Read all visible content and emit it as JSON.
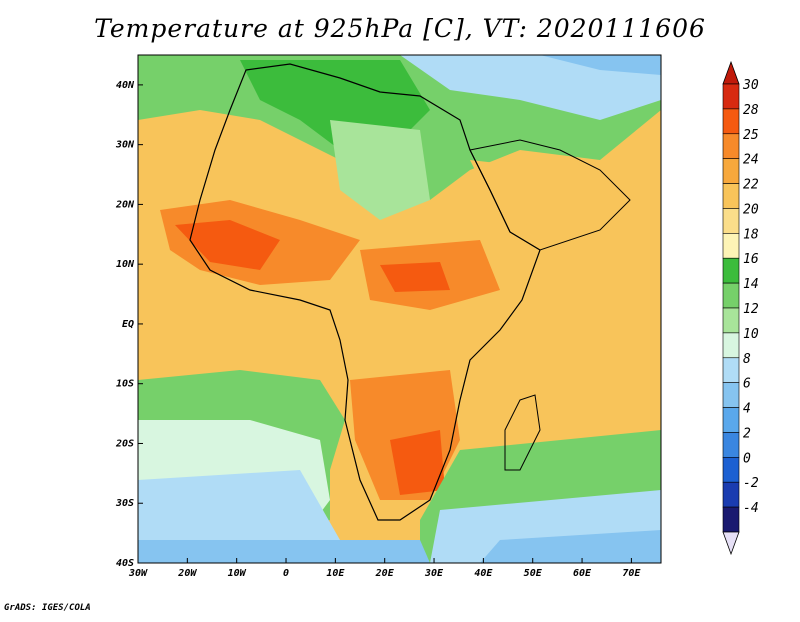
{
  "title": "Temperature at 925hPa [C], VT: 2020111606",
  "footer": "GrADS: IGES/COLA",
  "map": {
    "region": "Africa",
    "projection": "latlon",
    "lon_range": [
      -30,
      76
    ],
    "lat_range": [
      -40,
      45
    ],
    "x_ticks": [
      "30W",
      "20W",
      "10W",
      "0",
      "10E",
      "20E",
      "30E",
      "40E",
      "50E",
      "60E",
      "70E"
    ],
    "y_ticks": [
      "40N",
      "30N",
      "20N",
      "10N",
      "EQ",
      "10S",
      "20S",
      "30S",
      "40S"
    ]
  },
  "colorbar": {
    "labels": [
      "30",
      "28",
      "25",
      "24",
      "22",
      "20",
      "18",
      "16",
      "14",
      "12",
      "10",
      "8",
      "6",
      "4",
      "2",
      "0",
      "-2",
      "-4"
    ],
    "colors": [
      "#d72a10",
      "#f55a10",
      "#f78a2a",
      "#f7a83c",
      "#f8c45a",
      "#fbde8a",
      "#fdf4b6",
      "#3cbc3c",
      "#76d06a",
      "#a8e49a",
      "#d8f6e0",
      "#b0dcf6",
      "#86c4f0",
      "#5aa8ec",
      "#3a86e0",
      "#1c60d2",
      "#1a3cb0",
      "#1a1a70"
    ],
    "top_arrow_color": "#c01a0a",
    "bottom_arrow_color": "#e6e0f6"
  }
}
